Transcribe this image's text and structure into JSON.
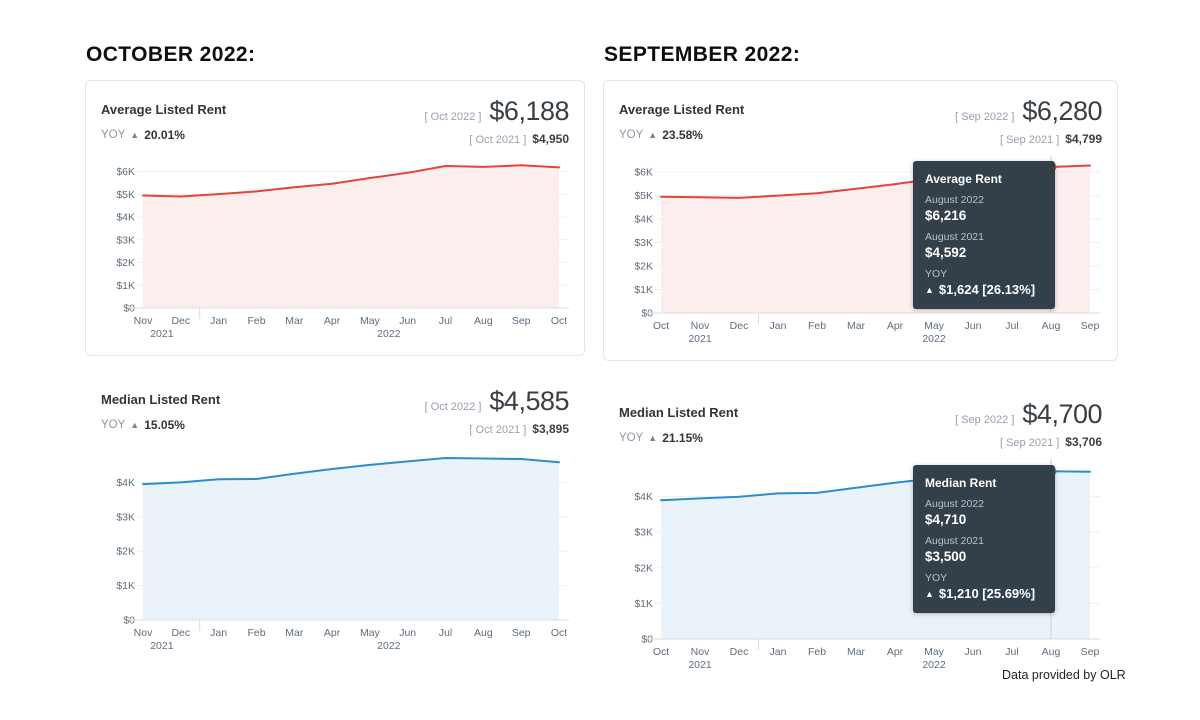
{
  "page": {
    "left_heading": "OCTOBER 2022:",
    "right_heading": "SEPTEMBER 2022:",
    "footer": "Data provided by OLR"
  },
  "icons": {
    "up_triangle": "▲"
  },
  "colors": {
    "red": "#e2453c",
    "red_fill": "#fbeeed",
    "blue": "#2d8dcc",
    "blue_fill": "#eaf3fa",
    "tooltip_bg": "#333f49",
    "axis_text": "#5e6d7c",
    "grid": "#edf0f3",
    "axis_line": "#d8dce0",
    "crosshair": "#c9d0d6"
  },
  "chart_data": [
    {
      "id": "october-average-rent",
      "type": "area",
      "title": "Average Listed Rent",
      "yoy_label": "YOY",
      "yoy_value": "20.01%",
      "current_label": "[ Oct 2022 ]",
      "current_value": "$6,188",
      "prior_label": "[ Oct 2021 ]",
      "prior_value": "$4,950",
      "color_key": "red",
      "x": [
        "Nov",
        "Dec",
        "Jan",
        "Feb",
        "Mar",
        "Apr",
        "May",
        "Jun",
        "Jul",
        "Aug",
        "Sep",
        "Oct"
      ],
      "values": [
        4950,
        4905,
        5010,
        5130,
        5310,
        5470,
        5720,
        5950,
        6250,
        6210,
        6280,
        6188
      ],
      "ylim": [
        0,
        6600
      ],
      "yticks": [
        {
          "v": 0,
          "label": "$0"
        },
        {
          "v": 1000,
          "label": "$1K"
        },
        {
          "v": 2000,
          "label": "$2K"
        },
        {
          "v": 3000,
          "label": "$3K"
        },
        {
          "v": 4000,
          "label": "$4K"
        },
        {
          "v": 5000,
          "label": "$5K"
        },
        {
          "v": 6000,
          "label": "$6K"
        }
      ],
      "year_ticks": [
        {
          "pos": 0.5,
          "label": "2021"
        },
        {
          "pos": 6.5,
          "label": "2022"
        }
      ],
      "year_separator_pos": 1.5,
      "tooltip": null
    },
    {
      "id": "october-median-rent",
      "type": "area",
      "title": "Median Listed Rent",
      "yoy_label": "YOY",
      "yoy_value": "15.05%",
      "current_label": "[ Oct 2022 ]",
      "current_value": "$4,585",
      "prior_label": "[ Oct 2021 ]",
      "prior_value": "$3,895",
      "color_key": "blue",
      "x": [
        "Nov",
        "Dec",
        "Jan",
        "Feb",
        "Mar",
        "Apr",
        "May",
        "Jun",
        "Jul",
        "Aug",
        "Sep",
        "Oct"
      ],
      "values": [
        3950,
        4000,
        4090,
        4100,
        4250,
        4390,
        4510,
        4610,
        4710,
        4695,
        4680,
        4585
      ],
      "ylim": [
        0,
        5000
      ],
      "yticks": [
        {
          "v": 0,
          "label": "$0"
        },
        {
          "v": 1000,
          "label": "$1K"
        },
        {
          "v": 2000,
          "label": "$2K"
        },
        {
          "v": 3000,
          "label": "$3K"
        },
        {
          "v": 4000,
          "label": "$4K"
        }
      ],
      "year_ticks": [
        {
          "pos": 0.5,
          "label": "2021"
        },
        {
          "pos": 6.5,
          "label": "2022"
        }
      ],
      "year_separator_pos": 1.5,
      "tooltip": null
    },
    {
      "id": "september-average-rent",
      "type": "area",
      "title": "Average Listed Rent",
      "yoy_label": "YOY",
      "yoy_value": "23.58%",
      "current_label": "[ Sep 2022 ]",
      "current_value": "$6,280",
      "prior_label": "[ Sep 2021 ]",
      "prior_value": "$4,799",
      "color_key": "red",
      "x": [
        "Oct",
        "Nov",
        "Dec",
        "Jan",
        "Feb",
        "Mar",
        "Apr",
        "May",
        "Jun",
        "Jul",
        "Aug",
        "Sep"
      ],
      "values": [
        4950,
        4930,
        4900,
        5000,
        5100,
        5290,
        5490,
        5720,
        5930,
        6080,
        6216,
        6280
      ],
      "ylim": [
        0,
        6600
      ],
      "yticks": [
        {
          "v": 0,
          "label": "$0"
        },
        {
          "v": 1000,
          "label": "$1K"
        },
        {
          "v": 2000,
          "label": "$2K"
        },
        {
          "v": 3000,
          "label": "$3K"
        },
        {
          "v": 4000,
          "label": "$4K"
        },
        {
          "v": 5000,
          "label": "$5K"
        },
        {
          "v": 6000,
          "label": "$6K"
        }
      ],
      "year_ticks": [
        {
          "pos": 1,
          "label": "2021"
        },
        {
          "pos": 7,
          "label": "2022"
        }
      ],
      "year_separator_pos": 2.5,
      "tooltip": {
        "title": "Average Rent",
        "rows": [
          {
            "label": "August 2022",
            "value": "$6,216"
          },
          {
            "label": "August 2021",
            "value": "$4,592"
          }
        ],
        "yoy_label": "YOY",
        "delta": "$1,624 [26.13%]",
        "anchor_index": 10
      }
    },
    {
      "id": "september-median-rent",
      "type": "area",
      "title": "Median Listed Rent",
      "yoy_label": "YOY",
      "yoy_value": "21.15%",
      "current_label": "[ Sep 2022 ]",
      "current_value": "$4,700",
      "prior_label": "[ Sep 2021 ]",
      "prior_value": "$3,706",
      "color_key": "blue",
      "x": [
        "Oct",
        "Nov",
        "Dec",
        "Jan",
        "Feb",
        "Mar",
        "Apr",
        "May",
        "Jun",
        "Jul",
        "Aug",
        "Sep"
      ],
      "values": [
        3900,
        3950,
        3995,
        4090,
        4105,
        4250,
        4390,
        4510,
        4610,
        4680,
        4710,
        4700
      ],
      "ylim": [
        0,
        5000
      ],
      "yticks": [
        {
          "v": 0,
          "label": "$0"
        },
        {
          "v": 1000,
          "label": "$1K"
        },
        {
          "v": 2000,
          "label": "$2K"
        },
        {
          "v": 3000,
          "label": "$3K"
        },
        {
          "v": 4000,
          "label": "$4K"
        }
      ],
      "year_ticks": [
        {
          "pos": 1,
          "label": "2021"
        },
        {
          "pos": 7,
          "label": "2022"
        }
      ],
      "year_separator_pos": 2.5,
      "tooltip": {
        "title": "Median Rent",
        "rows": [
          {
            "label": "August 2022",
            "value": "$4,710"
          },
          {
            "label": "August 2021",
            "value": "$3,500"
          }
        ],
        "yoy_label": "YOY",
        "delta": "$1,210 [25.69%]",
        "anchor_index": 10
      }
    }
  ]
}
